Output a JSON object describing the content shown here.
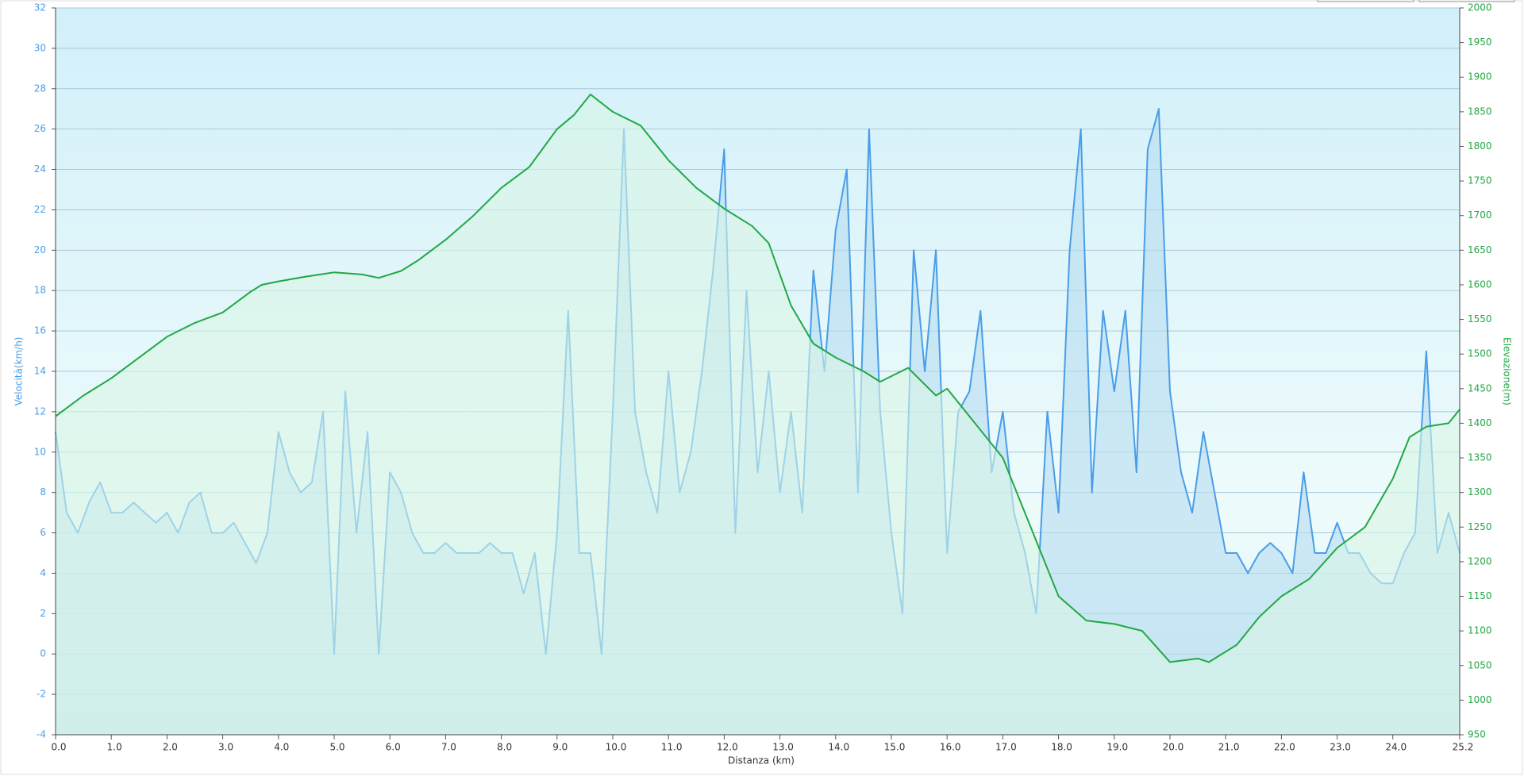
{
  "chart_data": {
    "type": "line",
    "xlabel": "Distanza  (km)",
    "ylabel": "Velocità(km/h)",
    "y2label": "Elevazione(m)",
    "xlim": [
      0,
      25.2
    ],
    "ylim": [
      -4,
      32
    ],
    "y2lim": [
      950,
      2000
    ],
    "grid": true,
    "xticks": [
      {
        "value": 0,
        "label": "0.0"
      },
      {
        "value": 1,
        "label": "1.0"
      },
      {
        "value": 2,
        "label": "2.0"
      },
      {
        "value": 3,
        "label": "3.0"
      },
      {
        "value": 4,
        "label": "4.0"
      },
      {
        "value": 5,
        "label": "5.0"
      },
      {
        "value": 6,
        "label": "6.0"
      },
      {
        "value": 7,
        "label": "7.0"
      },
      {
        "value": 8,
        "label": "8.0"
      },
      {
        "value": 9,
        "label": "9.0"
      },
      {
        "value": 10,
        "label": "10.0"
      },
      {
        "value": 11,
        "label": "11.0"
      },
      {
        "value": 12,
        "label": "12.0"
      },
      {
        "value": 13,
        "label": "13.0"
      },
      {
        "value": 14,
        "label": "14.0"
      },
      {
        "value": 15,
        "label": "15.0"
      },
      {
        "value": 16,
        "label": "16.0"
      },
      {
        "value": 17,
        "label": "17.0"
      },
      {
        "value": 18,
        "label": "18.0"
      },
      {
        "value": 19,
        "label": "19.0"
      },
      {
        "value": 20,
        "label": "20.0"
      },
      {
        "value": 21,
        "label": "21.0"
      },
      {
        "value": 22,
        "label": "22.0"
      },
      {
        "value": 23,
        "label": "23.0"
      },
      {
        "value": 24,
        "label": "24.0"
      },
      25.2
    ],
    "yticks": [
      -4,
      -2,
      0,
      2,
      4,
      6,
      8,
      10,
      12,
      14,
      16,
      18,
      20,
      22,
      24,
      26,
      28,
      30,
      32
    ],
    "y2ticks": [
      950,
      1000,
      1050,
      1100,
      1150,
      1200,
      1250,
      1300,
      1350,
      1400,
      1450,
      1500,
      1550,
      1600,
      1650,
      1700,
      1750,
      1800,
      1850,
      1900,
      1950,
      2000
    ],
    "series": [
      {
        "color": "#4a9de8",
        "fill": "#b5dcf0",
        "x": [
          0,
          0.2,
          0.4,
          0.6,
          0.8,
          1,
          1.2,
          1.4,
          1.6,
          1.8,
          2,
          2.2,
          2.4,
          2.6,
          2.8,
          3,
          3.2,
          3.4,
          3.6,
          3.8,
          4,
          4.2,
          4.4,
          4.6,
          4.8,
          5,
          5.2,
          5.4,
          5.6,
          5.8,
          6,
          6.2,
          6.4,
          6.6,
          6.8,
          7,
          7.2,
          7.4,
          7.6,
          7.8,
          8,
          8.2,
          8.4,
          8.6,
          8.8,
          9,
          9.2,
          9.4,
          9.6,
          9.8,
          10,
          10.2,
          10.4,
          10.6,
          10.8,
          11,
          11.2,
          11.4,
          11.6,
          11.8,
          12,
          12.2,
          12.4,
          12.6,
          12.8,
          13,
          13.2,
          13.4,
          13.6,
          13.8,
          14,
          14.2,
          14.4,
          14.6,
          14.8,
          15,
          15.2,
          15.4,
          15.6,
          15.8,
          16,
          16.2,
          16.4,
          16.6,
          16.8,
          17,
          17.2,
          17.4,
          17.6,
          17.8,
          18,
          18.2,
          18.4,
          18.6,
          18.8,
          19,
          19.2,
          19.4,
          19.6,
          19.8,
          20,
          20.2,
          20.4,
          20.6,
          20.8,
          21,
          21.2,
          21.4,
          21.6,
          21.8,
          22,
          22.2,
          22.4,
          22.6,
          22.8,
          23,
          23.2,
          23.4,
          23.6,
          23.8,
          24,
          24.2,
          24.4,
          24.6,
          24.8,
          25,
          25.2
        ],
        "values": [
          11,
          7,
          6,
          7.5,
          8.5,
          7,
          7,
          7.5,
          7,
          6.5,
          7,
          6,
          7.5,
          8,
          6,
          6,
          6.5,
          5.5,
          4.5,
          6,
          11,
          9,
          8,
          8.5,
          12,
          0,
          13,
          6,
          11,
          0,
          9,
          8,
          6,
          5,
          5,
          5.5,
          5,
          5,
          5,
          5.5,
          5,
          5,
          3,
          5,
          0,
          6,
          17,
          5,
          5,
          0,
          12,
          26,
          12,
          9,
          7,
          14,
          8,
          10,
          14,
          19,
          25,
          6,
          18,
          9,
          14,
          8,
          12,
          7,
          19,
          14,
          21,
          24,
          8,
          26,
          12,
          6,
          2,
          20,
          14,
          20,
          5,
          12,
          13,
          17,
          9,
          12,
          7,
          5,
          2,
          12,
          7,
          20,
          26,
          8,
          17,
          13,
          17,
          9,
          25,
          27,
          13,
          9,
          7,
          11,
          8,
          5,
          5,
          4,
          5,
          5.5,
          5,
          4,
          9,
          5,
          5,
          6.5,
          5,
          5,
          4,
          3.5,
          3.5,
          5,
          6,
          15,
          5,
          7,
          5
        ]
      },
      {
        "color": "#22a844",
        "fill": "#d8f5e6",
        "axis": "y2",
        "x": [
          0,
          0.5,
          1,
          1.5,
          2,
          2.5,
          3,
          3.5,
          3.7,
          4,
          4.5,
          5,
          5.5,
          5.8,
          6.2,
          6.5,
          7,
          7.5,
          8,
          8.5,
          9,
          9.3,
          9.6,
          10,
          10.5,
          11,
          11.5,
          12,
          12.5,
          12.8,
          13.2,
          13.6,
          14,
          14.5,
          14.8,
          15.3,
          15.8,
          16,
          16.5,
          17,
          17.5,
          18,
          18.5,
          19,
          19.5,
          20,
          20.5,
          20.7,
          21.2,
          21.6,
          22,
          22.5,
          23,
          23.5,
          24,
          24.3,
          24.6,
          25,
          25.2
        ],
        "values": [
          1410,
          1440,
          1465,
          1495,
          1525,
          1545,
          1560,
          1590,
          1600,
          1605,
          1612,
          1618,
          1615,
          1610,
          1620,
          1635,
          1665,
          1700,
          1740,
          1770,
          1825,
          1845,
          1875,
          1850,
          1830,
          1780,
          1740,
          1710,
          1685,
          1660,
          1570,
          1515,
          1495,
          1475,
          1460,
          1480,
          1440,
          1450,
          1400,
          1350,
          1250,
          1150,
          1115,
          1110,
          1100,
          1055,
          1060,
          1055,
          1080,
          1120,
          1150,
          1175,
          1220,
          1250,
          1320,
          1380,
          1395,
          1400,
          1420
        ]
      }
    ]
  }
}
